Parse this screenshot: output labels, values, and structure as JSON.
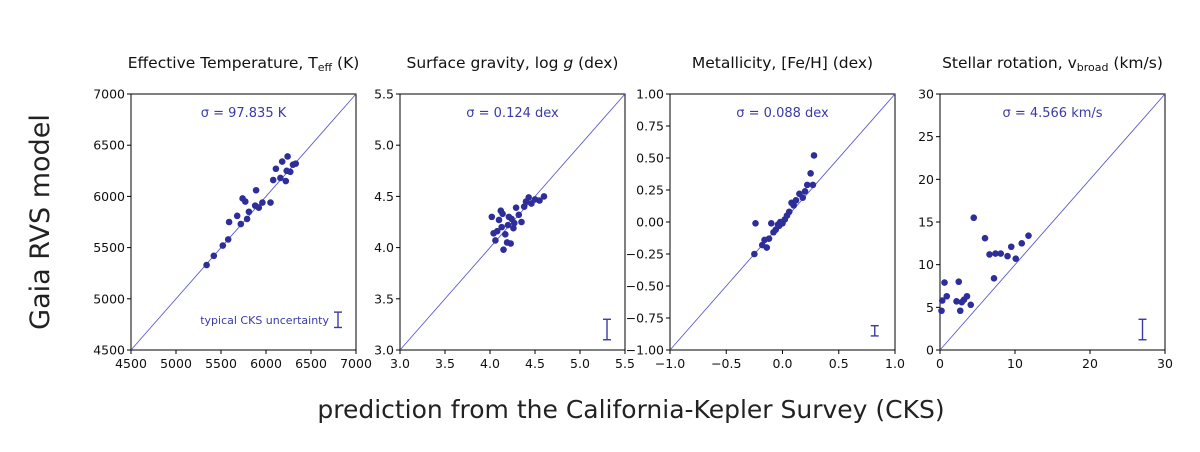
{
  "figure": {
    "ylabel": "Gaia RVS model",
    "xlabel": "prediction from the California-Kepler Survey (CKS)"
  },
  "colors": {
    "points": "#2e2e9a",
    "line": "#5a5ad0",
    "text_blue": "#3a3aa8"
  },
  "chart_data": [
    {
      "type": "scatter",
      "title": "Effective Temperature, T",
      "title_sub": "eff",
      "title_suffix": " (K)",
      "sigma_text": "σ = 97.835 K",
      "note": "typical CKS uncertainty",
      "xlim": [
        4500,
        7000
      ],
      "ylim": [
        4500,
        7000
      ],
      "xticks": [
        4500,
        5000,
        5500,
        6000,
        6500,
        7000
      ],
      "xtick_labels": [
        "4500",
        "5000",
        "5500",
        "6000",
        "6500",
        "7000"
      ],
      "yticks": [
        4500,
        5000,
        5500,
        6000,
        6500,
        7000
      ],
      "ytick_labels": [
        "4500",
        "5000",
        "5500",
        "6000",
        "6500",
        "7000"
      ],
      "errorbar": {
        "x": 6800,
        "y_low": 4720,
        "y_high": 4870
      },
      "points": [
        [
          5340,
          5330
        ],
        [
          5420,
          5420
        ],
        [
          5520,
          5520
        ],
        [
          5580,
          5580
        ],
        [
          5590,
          5750
        ],
        [
          5680,
          5810
        ],
        [
          5720,
          5730
        ],
        [
          5740,
          5980
        ],
        [
          5770,
          5950
        ],
        [
          5790,
          5780
        ],
        [
          5810,
          5850
        ],
        [
          5880,
          5910
        ],
        [
          5890,
          6060
        ],
        [
          5920,
          5890
        ],
        [
          5960,
          5940
        ],
        [
          6050,
          5940
        ],
        [
          6080,
          6160
        ],
        [
          6110,
          6270
        ],
        [
          6160,
          6180
        ],
        [
          6180,
          6340
        ],
        [
          6220,
          6150
        ],
        [
          6230,
          6250
        ],
        [
          6240,
          6390
        ],
        [
          6270,
          6240
        ],
        [
          6300,
          6310
        ],
        [
          6330,
          6320
        ]
      ]
    },
    {
      "type": "scatter",
      "title": "Surface gravity, log ",
      "title_italic": "g",
      "title_suffix": " (dex)",
      "sigma_text": "σ = 0.124 dex",
      "xlim": [
        3.0,
        5.5
      ],
      "ylim": [
        3.0,
        5.5
      ],
      "xticks": [
        3.0,
        3.5,
        4.0,
        4.5,
        5.0,
        5.5
      ],
      "xtick_labels": [
        "3.0",
        "3.5",
        "4.0",
        "4.5",
        "5.0",
        "5.5"
      ],
      "yticks": [
        3.0,
        3.5,
        4.0,
        4.5,
        5.0,
        5.5
      ],
      "ytick_labels": [
        "3.0",
        "3.5",
        "4.0",
        "4.5",
        "5.0",
        "5.5"
      ],
      "errorbar": {
        "x": 5.3,
        "y_low": 3.1,
        "y_high": 3.3
      },
      "points": [
        [
          4.02,
          4.3
        ],
        [
          4.04,
          4.14
        ],
        [
          4.06,
          4.07
        ],
        [
          4.08,
          4.16
        ],
        [
          4.1,
          4.27
        ],
        [
          4.12,
          4.36
        ],
        [
          4.13,
          4.2
        ],
        [
          4.14,
          4.33
        ],
        [
          4.15,
          3.98
        ],
        [
          4.17,
          4.13
        ],
        [
          4.19,
          4.05
        ],
        [
          4.2,
          4.22
        ],
        [
          4.21,
          4.3
        ],
        [
          4.23,
          4.04
        ],
        [
          4.24,
          4.28
        ],
        [
          4.26,
          4.19
        ],
        [
          4.27,
          4.24
        ],
        [
          4.29,
          4.39
        ],
        [
          4.32,
          4.32
        ],
        [
          4.35,
          4.25
        ],
        [
          4.38,
          4.4
        ],
        [
          4.4,
          4.45
        ],
        [
          4.43,
          4.49
        ],
        [
          4.46,
          4.43
        ],
        [
          4.5,
          4.47
        ],
        [
          4.55,
          4.46
        ],
        [
          4.6,
          4.5
        ]
      ]
    },
    {
      "type": "scatter",
      "title": "Metallicity, [Fe/H] (dex)",
      "sigma_text": "σ = 0.088 dex",
      "xlim": [
        -1.0,
        1.0
      ],
      "ylim": [
        -1.0,
        1.0
      ],
      "xticks": [
        -1.0,
        -0.5,
        0.0,
        0.5,
        1.0
      ],
      "xtick_labels": [
        "−1.0",
        "−0.5",
        "0.0",
        "0.5",
        "1.0"
      ],
      "yticks": [
        -1.0,
        -0.75,
        -0.5,
        -0.25,
        0.0,
        0.25,
        0.5,
        0.75,
        1.0
      ],
      "ytick_labels": [
        "−1.00",
        "−0.75",
        "−0.50",
        "−0.25",
        "0.00",
        "0.25",
        "0.50",
        "0.75",
        "1.00"
      ],
      "errorbar": {
        "x": 0.82,
        "y_low": -0.89,
        "y_high": -0.81
      },
      "points": [
        [
          -0.25,
          -0.25
        ],
        [
          -0.24,
          -0.01
        ],
        [
          -0.18,
          -0.18
        ],
        [
          -0.16,
          -0.14
        ],
        [
          -0.14,
          -0.2
        ],
        [
          -0.12,
          -0.13
        ],
        [
          -0.1,
          -0.01
        ],
        [
          -0.08,
          -0.08
        ],
        [
          -0.06,
          -0.06
        ],
        [
          -0.04,
          -0.02
        ],
        [
          -0.03,
          -0.03
        ],
        [
          -0.02,
          0.0
        ],
        [
          0.0,
          -0.01
        ],
        [
          0.02,
          0.02
        ],
        [
          0.04,
          0.05
        ],
        [
          0.06,
          0.08
        ],
        [
          0.08,
          0.15
        ],
        [
          0.1,
          0.13
        ],
        [
          0.12,
          0.17
        ],
        [
          0.15,
          0.22
        ],
        [
          0.18,
          0.19
        ],
        [
          0.2,
          0.24
        ],
        [
          0.22,
          0.29
        ],
        [
          0.25,
          0.38
        ],
        [
          0.27,
          0.29
        ],
        [
          0.28,
          0.52
        ]
      ]
    },
    {
      "type": "scatter",
      "title": "Stellar rotation, v",
      "title_sub": "broad",
      "title_suffix": " (km/s)",
      "sigma_text": "σ = 4.566 km/s",
      "xlim": [
        0,
        30
      ],
      "ylim": [
        0,
        30
      ],
      "xticks": [
        0,
        10,
        20,
        30
      ],
      "xtick_labels": [
        "0",
        "10",
        "20",
        "30"
      ],
      "yticks": [
        0,
        5,
        10,
        15,
        20,
        25,
        30
      ],
      "ytick_labels": [
        "0",
        "5",
        "10",
        "15",
        "20",
        "25",
        "30"
      ],
      "errorbar": {
        "x": 27,
        "y_low": 1.2,
        "y_high": 3.6
      },
      "points": [
        [
          0.2,
          4.6
        ],
        [
          0.3,
          5.8
        ],
        [
          0.6,
          7.9
        ],
        [
          0.9,
          6.3
        ],
        [
          2.2,
          5.7
        ],
        [
          2.5,
          8.0
        ],
        [
          2.7,
          4.6
        ],
        [
          2.9,
          5.6
        ],
        [
          3.2,
          5.9
        ],
        [
          3.6,
          6.3
        ],
        [
          4.1,
          5.3
        ],
        [
          4.5,
          15.5
        ],
        [
          6.0,
          13.1
        ],
        [
          6.6,
          11.2
        ],
        [
          7.2,
          8.4
        ],
        [
          7.4,
          11.3
        ],
        [
          8.1,
          11.3
        ],
        [
          9.0,
          11.0
        ],
        [
          9.5,
          12.1
        ],
        [
          10.1,
          10.7
        ],
        [
          10.9,
          12.5
        ],
        [
          11.8,
          13.4
        ]
      ]
    }
  ]
}
